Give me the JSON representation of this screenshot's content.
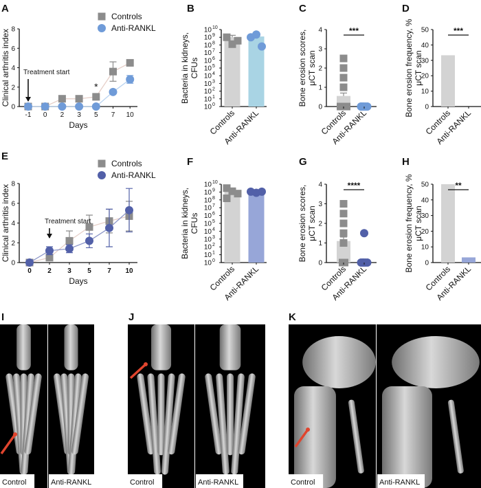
{
  "colors": {
    "controls_marker": "#8c8c8c",
    "controls_line": "#e6cfc8",
    "controls_bar": "#d3d3d3",
    "anti_top_marker": "#6f9bd8",
    "anti_top_bar": "#a9d4e4",
    "anti_bottom_marker": "#5260a8",
    "anti_bottom_bar": "#97a6d8",
    "arrow_red": "#e0452e"
  },
  "chart_data": [
    {
      "panel": "A",
      "type": "line",
      "xlabel": "Days",
      "ylabel": "Clinical arthritis index",
      "ylim": [
        0,
        8
      ],
      "yticks": [
        "0",
        "2",
        "4",
        "6",
        "8"
      ],
      "x": [
        "-1",
        "0",
        "2",
        "3",
        "5",
        "7",
        "10"
      ],
      "annotation": "Treatment start",
      "annotation_at": "-1",
      "significance": [
        {
          "at": "5",
          "label": "*"
        }
      ],
      "legend": [
        "Controls",
        "Anti-RANKL"
      ],
      "legend_position": "top-right",
      "series": [
        {
          "name": "Controls",
          "marker": "square",
          "values": [
            0,
            0,
            0.8,
            0.8,
            1.0,
            3.6,
            4.5
          ],
          "err": [
            0,
            0,
            0,
            0,
            0,
            1.0,
            0.3
          ]
        },
        {
          "name": "Anti-RANKL",
          "marker": "circle",
          "values": [
            0,
            0,
            0,
            0,
            0,
            1.5,
            2.8
          ],
          "err": [
            0,
            0,
            0,
            0,
            0,
            0.15,
            0.4
          ]
        }
      ]
    },
    {
      "panel": "E",
      "type": "line",
      "xlabel": "Days",
      "ylabel": "Clinical arthritis index",
      "ylim": [
        0,
        8
      ],
      "yticks": [
        "0",
        "2",
        "4",
        "6",
        "8"
      ],
      "x": [
        "0",
        "2",
        "3",
        "5",
        "7",
        "10"
      ],
      "annotation": "Treatment start",
      "annotation_at": "2",
      "legend": [
        "Controls",
        "Anti-RANKL"
      ],
      "legend_position": "top-right",
      "series": [
        {
          "name": "Controls",
          "marker": "square",
          "values": [
            0,
            0.5,
            2.2,
            3.6,
            4.2,
            4.7
          ],
          "err": [
            0,
            0.2,
            1.0,
            1.2,
            1.2,
            1.5
          ]
        },
        {
          "name": "Anti-RANKL",
          "marker": "circle",
          "values": [
            0,
            1.2,
            1.4,
            2.2,
            3.5,
            5.3
          ],
          "err": [
            0,
            0.4,
            0.4,
            0.7,
            1.9,
            2.2
          ]
        }
      ]
    },
    {
      "panel": "B",
      "type": "bar",
      "scale": "log",
      "ylabel": [
        "Bacteria in kidneys,",
        "CFUs"
      ],
      "ylim_exp": [
        0,
        10
      ],
      "tick_base": "10",
      "categories": [
        "Controls",
        "Anti-RANKL"
      ],
      "values_log10": [
        9.0,
        9.1
      ],
      "err_log10": [
        0.25,
        0.35
      ],
      "points_log10": [
        [
          9.0,
          8.1,
          8.55
        ],
        [
          9.0,
          9.35,
          7.8
        ]
      ]
    },
    {
      "panel": "C",
      "type": "bar",
      "ylabel": [
        "Bone erosion scores,",
        "μCT scan"
      ],
      "ylim": [
        0,
        4
      ],
      "yticks": [
        "0",
        "1",
        "2",
        "3",
        "4"
      ],
      "categories": [
        "Controls",
        "Anti-RANKL"
      ],
      "values": [
        0.55,
        0
      ],
      "err": [
        0.15,
        0
      ],
      "points": [
        [
          2.5,
          2.0,
          1.5,
          1.0,
          0,
          0,
          0,
          0
        ],
        [
          0,
          0,
          0,
          0,
          0,
          0
        ]
      ],
      "significance": "***"
    },
    {
      "panel": "D",
      "type": "bar",
      "ylabel": [
        "Bone erosion frequency, %",
        "μCT scan"
      ],
      "ylim": [
        0,
        50
      ],
      "yticks": [
        "0",
        "10",
        "20",
        "30",
        "40",
        "50"
      ],
      "categories": [
        "Controls",
        "Anti-RANKL"
      ],
      "values": [
        33.3,
        0
      ],
      "significance": "***"
    },
    {
      "panel": "F",
      "type": "bar",
      "scale": "log",
      "ylabel": [
        "Bacteria in kidneys,",
        "CFUs"
      ],
      "ylim_exp": [
        0,
        10
      ],
      "tick_base": "10",
      "categories": [
        "Controls",
        "Anti-RANKL"
      ],
      "values_log10": [
        9.2,
        9.0
      ],
      "err_log10": [
        0.2,
        0.05
      ],
      "points_log10": [
        [
          9.5,
          9.1,
          8.8,
          8.2
        ],
        [
          9.05,
          8.9,
          9.05
        ]
      ]
    },
    {
      "panel": "G",
      "type": "bar",
      "ylabel": [
        "Bone erosion scores,",
        "μCT scan"
      ],
      "ylim": [
        0,
        4
      ],
      "yticks": [
        "0",
        "1",
        "2",
        "3",
        "4"
      ],
      "categories": [
        "Controls",
        "Anti-RANKL"
      ],
      "values": [
        1.1,
        0.05
      ],
      "err": [
        0.2,
        0
      ],
      "points": [
        [
          3.0,
          2.5,
          2.0,
          1.5,
          1.0,
          0,
          0
        ],
        [
          1.5,
          0,
          0,
          0,
          0,
          0
        ]
      ],
      "significance": "****"
    },
    {
      "panel": "H",
      "type": "bar",
      "ylabel": [
        "Bone erosion frequency, %",
        "μCT scan"
      ],
      "ylim": [
        0,
        50
      ],
      "yticks": [
        "0",
        "10",
        "20",
        "30",
        "40",
        "50"
      ],
      "categories": [
        "Controls",
        "Anti-RANKL"
      ],
      "values": [
        50,
        3.3
      ],
      "significance": "**"
    }
  ],
  "images": [
    {
      "panel": "I",
      "left_label": "Control",
      "right_label": "Anti-RANKL"
    },
    {
      "panel": "J",
      "left_label": "Control",
      "right_label": "Anti-RANKL"
    },
    {
      "panel": "K",
      "left_label": "Control",
      "right_label": "Anti-RANKL"
    }
  ]
}
